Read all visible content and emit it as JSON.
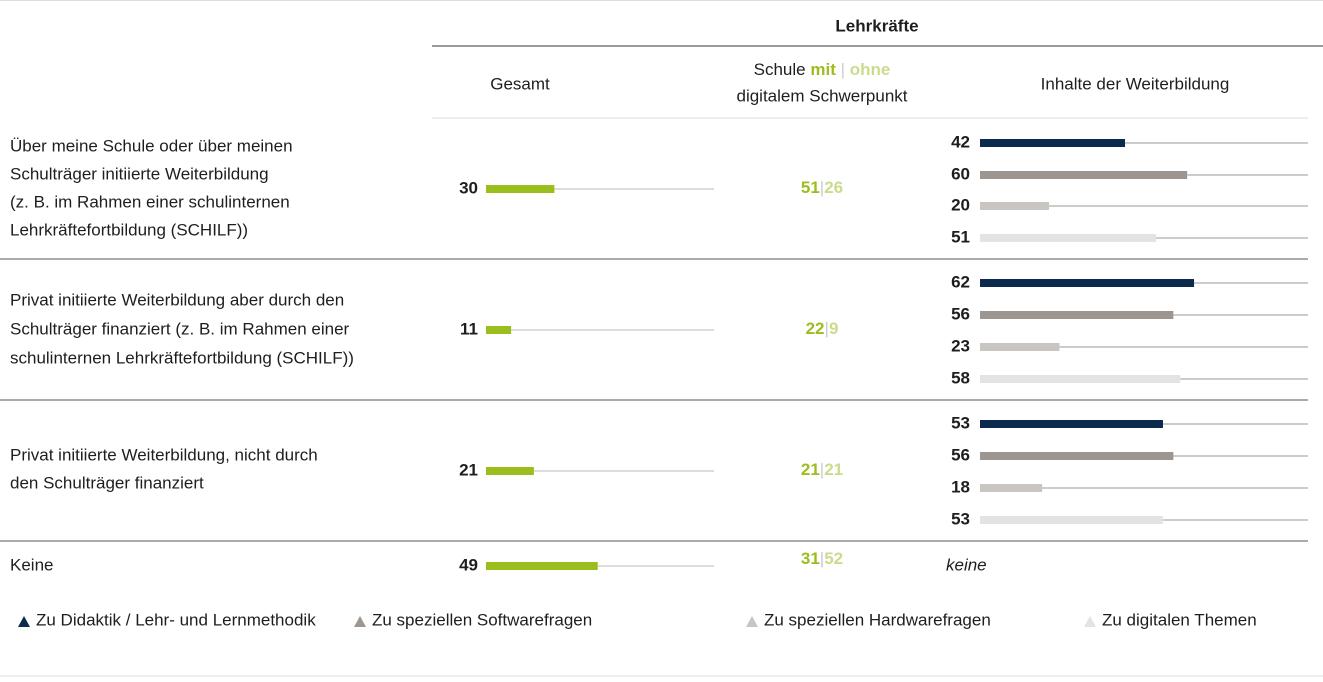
{
  "header": {
    "title": "Lehrkräfte",
    "columns": {
      "total": "Gesamt",
      "school": {
        "prefix": "Schule",
        "with": "mit",
        "separator": "|",
        "without": "ohne",
        "suffix": "digitalem Schwerpunkt"
      },
      "content": "Inhalte der Weiterbildung"
    }
  },
  "scales": {
    "total_xlim": [
      0,
      100
    ],
    "content_xlim": [
      0,
      95
    ]
  },
  "colors": {
    "total": "#9cbd1e",
    "with": "#9cbd1e",
    "without": "#c9dc8e",
    "content": [
      "#0c2a4d",
      "#9d9690",
      "#c9c5c1",
      "#e5e3e1"
    ]
  },
  "rows": [
    {
      "label": [
        "Über meine Schule oder über meinen",
        "Schulträger initiierte Weiterbildung",
        "(z. B. im Rahmen einer schulinternen",
        "Lehrkräftefortbildung (SCHILF))"
      ],
      "total": 30,
      "with": 51,
      "without": 26,
      "content": [
        42,
        60,
        20,
        51
      ]
    },
    {
      "label": [
        "Privat initiierte Weiterbildung aber durch den",
        "Schulträger finanziert (z. B. im Rahmen einer",
        "schulinternen Lehrkräftefortbildung (SCHILF))"
      ],
      "total": 11,
      "with": 22,
      "without": 9,
      "content": [
        62,
        56,
        23,
        58
      ]
    },
    {
      "label": [
        "Privat initiierte Weiterbildung, nicht durch",
        "den Schulträger finanziert"
      ],
      "total": 21,
      "with": 21,
      "without": 21,
      "content": [
        53,
        56,
        18,
        53
      ]
    },
    {
      "label": [
        "Keine"
      ],
      "total": 49,
      "with": 31,
      "without": 52,
      "content_note": "keine"
    }
  ],
  "legend": [
    "Zu Didaktik / Lehr- und Lernmethodik",
    "Zu speziellen Softwarefragen",
    "Zu speziellen Hardwarefragen",
    "Zu digitalen Themen"
  ]
}
